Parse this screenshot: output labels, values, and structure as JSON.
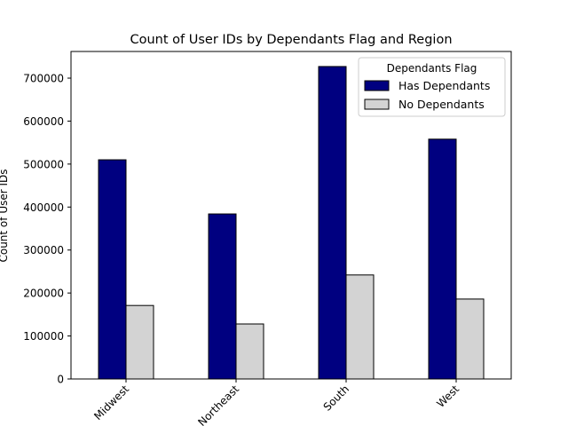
{
  "chart_data": {
    "type": "bar",
    "title": "Count of User IDs by Dependants Flag and Region",
    "xlabel": "",
    "ylabel": "Count of User IDs",
    "categories": [
      "Midwest",
      "Northeast",
      "South",
      "West"
    ],
    "series": [
      {
        "name": "Has Dependants",
        "color": "#000080",
        "values": [
          510000,
          384000,
          727000,
          558000
        ]
      },
      {
        "name": "No Dependants",
        "color": "#d3d3d3",
        "values": [
          171000,
          128000,
          242000,
          186000
        ]
      }
    ],
    "ylim": [
      0,
      762000
    ],
    "yticks": [
      0,
      100000,
      200000,
      300000,
      400000,
      500000,
      600000,
      700000
    ],
    "ytick_labels": [
      "0",
      "100000",
      "200000",
      "300000",
      "400000",
      "500000",
      "600000",
      "700000"
    ],
    "legend": {
      "title": "Dependants Flag",
      "placement": "top-right"
    },
    "grid": false
  }
}
